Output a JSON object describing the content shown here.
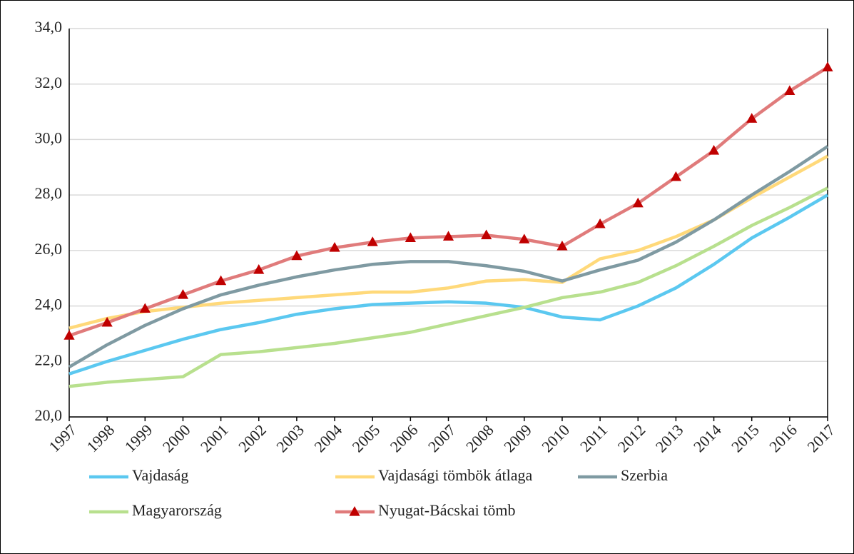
{
  "chart_data": {
    "type": "line",
    "categories": [
      "1997",
      "1998",
      "1999",
      "2000",
      "2001",
      "2002",
      "2003",
      "2004",
      "2005",
      "2006",
      "2007",
      "2008",
      "2009",
      "2010",
      "2011",
      "2012",
      "2013",
      "2014",
      "2015",
      "2016",
      "2017"
    ],
    "series": [
      {
        "name": "Vajdaság",
        "color": "#5bc8f0",
        "values": [
          21.55,
          22.0,
          22.4,
          22.8,
          23.15,
          23.4,
          23.7,
          23.9,
          24.05,
          24.1,
          24.15,
          24.1,
          23.95,
          23.6,
          23.5,
          24.0,
          24.65,
          25.5,
          26.45,
          27.2,
          28.0
        ]
      },
      {
        "name": "Vajdasági tömbök átlaga",
        "color": "#ffd97a",
        "values": [
          23.2,
          23.55,
          23.8,
          23.95,
          24.1,
          24.2,
          24.3,
          24.4,
          24.5,
          24.5,
          24.65,
          24.9,
          24.95,
          24.85,
          25.7,
          26.0,
          26.5,
          27.1,
          27.9,
          28.65,
          29.4
        ]
      },
      {
        "name": "Szerbia",
        "color": "#7f9aa2",
        "values": [
          21.8,
          22.6,
          23.3,
          23.9,
          24.4,
          24.75,
          25.05,
          25.3,
          25.5,
          25.6,
          25.6,
          25.45,
          25.25,
          24.9,
          25.3,
          25.65,
          26.3,
          27.1,
          28.0,
          28.85,
          29.75
        ]
      },
      {
        "name": "Magyarország",
        "color": "#b8e08e",
        "values": [
          21.1,
          21.25,
          21.35,
          21.45,
          22.25,
          22.35,
          22.5,
          22.65,
          22.85,
          23.05,
          23.35,
          23.65,
          23.95,
          24.3,
          24.5,
          24.85,
          25.45,
          26.15,
          26.9,
          27.55,
          28.25
        ]
      },
      {
        "name": "Nyugat-Bácskai tömb",
        "color": "#e07b7b",
        "marker": "triangle",
        "marker_color": "#c00000",
        "values": [
          22.93,
          23.4,
          23.9,
          24.4,
          24.9,
          25.3,
          25.8,
          26.1,
          26.3,
          26.45,
          26.5,
          26.55,
          26.4,
          26.15,
          26.95,
          27.7,
          28.65,
          29.6,
          30.75,
          31.75,
          32.6
        ]
      }
    ],
    "ylim": [
      20,
      34
    ],
    "yticks": [
      {
        "value": 20,
        "label": "20,0"
      },
      {
        "value": 22,
        "label": "22,0"
      },
      {
        "value": 24,
        "label": "24,0"
      },
      {
        "value": 26,
        "label": "26,0"
      },
      {
        "value": 28,
        "label": "28,0"
      },
      {
        "value": 30,
        "label": "30,0"
      },
      {
        "value": 32,
        "label": "32,0"
      },
      {
        "value": 34,
        "label": "34,0"
      }
    ],
    "grid": true
  }
}
